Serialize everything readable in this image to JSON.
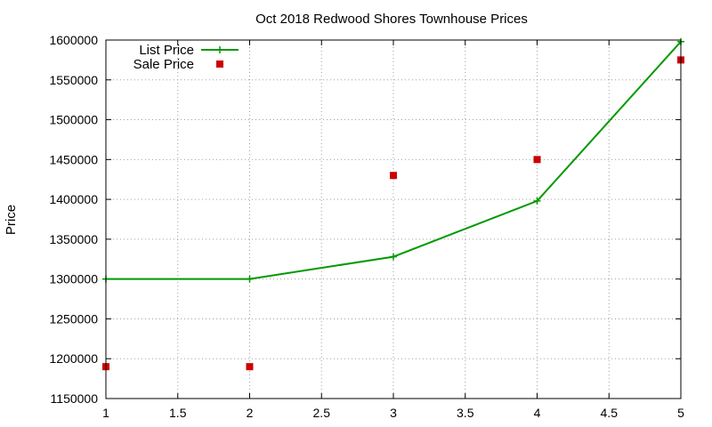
{
  "chart_data": {
    "type": "line",
    "title": "Oct 2018 Redwood Shores Townhouse Prices",
    "xlabel": "",
    "ylabel": "Price",
    "xlim": [
      1,
      5
    ],
    "ylim": [
      1150000,
      1600000
    ],
    "x_ticks": [
      1,
      1.5,
      2,
      2.5,
      3,
      3.5,
      4,
      4.5,
      5
    ],
    "y_ticks": [
      1150000,
      1200000,
      1250000,
      1300000,
      1350000,
      1400000,
      1450000,
      1500000,
      1550000,
      1600000
    ],
    "grid": true,
    "legend_position": "top-left",
    "series": [
      {
        "name": "List Price",
        "style": "linespoints",
        "marker": "plus",
        "color": "#009900",
        "x": [
          1,
          2,
          3,
          4,
          5
        ],
        "y": [
          1300000,
          1300000,
          1328000,
          1398000,
          1598000
        ]
      },
      {
        "name": "Sale Price",
        "style": "points",
        "marker": "square",
        "color": "#cc0000",
        "x": [
          1,
          2,
          3,
          4,
          5
        ],
        "y": [
          1190000,
          1190000,
          1430000,
          1450000,
          1575000
        ]
      }
    ]
  }
}
